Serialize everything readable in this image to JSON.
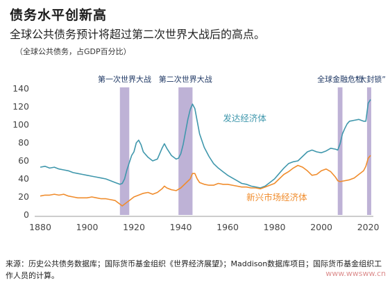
{
  "header": {
    "title": "债务水平创新高",
    "subtitle": "全球公共债务预计将超过第二次世界大战后的高点。",
    "unit_note": "（全球公共债务，占GDP百分比）"
  },
  "footer": {
    "source": "来源：历史公共债务数据库；国际货币基金组织《世界经济展望》；Maddison数据库项目；国际货币基金组织工作人员的计算。"
  },
  "watermark": {
    "text": "www.wwsww.cn"
  },
  "colors": {
    "advanced": "#3f97ac",
    "emerging": "#f08c2c",
    "band": "#b3a4cf",
    "axis": "#9a9a9a"
  },
  "chart_data": {
    "type": "line",
    "xlim": [
      1880,
      2021
    ],
    "ylim": [
      0,
      140
    ],
    "x_ticks": [
      1880,
      1900,
      1920,
      1940,
      1960,
      1980,
      2000,
      2020
    ],
    "y_ticks": [
      0,
      20,
      40,
      60,
      80,
      100,
      120,
      140
    ],
    "grid": false,
    "annotations": [
      {
        "label": "第一次世界大战",
        "start": 1914,
        "end": 1918
      },
      {
        "label": "第二次世界大战",
        "start": 1939,
        "end": 1945
      },
      {
        "label": "全球金融危机",
        "start": 2007,
        "end": 2009
      },
      {
        "label": "“大封锁”",
        "start": 2019.5,
        "end": 2021
      }
    ],
    "series": [
      {
        "name": "发达经济体",
        "points": [
          [
            1880,
            53
          ],
          [
            1882,
            54
          ],
          [
            1884,
            52
          ],
          [
            1886,
            53
          ],
          [
            1888,
            51
          ],
          [
            1890,
            50
          ],
          [
            1892,
            49
          ],
          [
            1894,
            47
          ],
          [
            1896,
            46
          ],
          [
            1898,
            45
          ],
          [
            1900,
            44
          ],
          [
            1902,
            43
          ],
          [
            1904,
            42
          ],
          [
            1906,
            41
          ],
          [
            1908,
            40
          ],
          [
            1910,
            38
          ],
          [
            1912,
            36
          ],
          [
            1914,
            34
          ],
          [
            1915,
            35
          ],
          [
            1916,
            40
          ],
          [
            1917,
            50
          ],
          [
            1918,
            58
          ],
          [
            1919,
            66
          ],
          [
            1920,
            70
          ],
          [
            1921,
            80
          ],
          [
            1922,
            83
          ],
          [
            1923,
            78
          ],
          [
            1924,
            70
          ],
          [
            1926,
            64
          ],
          [
            1928,
            60
          ],
          [
            1930,
            62
          ],
          [
            1932,
            74
          ],
          [
            1933,
            79
          ],
          [
            1934,
            74
          ],
          [
            1936,
            66
          ],
          [
            1938,
            62
          ],
          [
            1939,
            63
          ],
          [
            1940,
            68
          ],
          [
            1941,
            78
          ],
          [
            1942,
            92
          ],
          [
            1943,
            106
          ],
          [
            1944,
            117
          ],
          [
            1945,
            123
          ],
          [
            1946,
            118
          ],
          [
            1947,
            104
          ],
          [
            1948,
            90
          ],
          [
            1950,
            75
          ],
          [
            1952,
            65
          ],
          [
            1954,
            57
          ],
          [
            1956,
            52
          ],
          [
            1958,
            48
          ],
          [
            1960,
            44
          ],
          [
            1962,
            41
          ],
          [
            1964,
            38
          ],
          [
            1966,
            35
          ],
          [
            1968,
            34
          ],
          [
            1970,
            32
          ],
          [
            1972,
            31
          ],
          [
            1974,
            30
          ],
          [
            1976,
            32
          ],
          [
            1978,
            36
          ],
          [
            1980,
            40
          ],
          [
            1982,
            46
          ],
          [
            1984,
            52
          ],
          [
            1986,
            57
          ],
          [
            1988,
            59
          ],
          [
            1990,
            60
          ],
          [
            1992,
            65
          ],
          [
            1994,
            70
          ],
          [
            1996,
            72
          ],
          [
            1998,
            70
          ],
          [
            2000,
            69
          ],
          [
            2002,
            71
          ],
          [
            2004,
            74
          ],
          [
            2006,
            73
          ],
          [
            2007,
            72
          ],
          [
            2008,
            79
          ],
          [
            2009,
            90
          ],
          [
            2010,
            96
          ],
          [
            2011,
            101
          ],
          [
            2012,
            104
          ],
          [
            2014,
            105
          ],
          [
            2016,
            106
          ],
          [
            2018,
            104
          ],
          [
            2019,
            104
          ],
          [
            2020,
            124
          ],
          [
            2021,
            128
          ]
        ]
      },
      {
        "name": "新兴市场经济体",
        "points": [
          [
            1880,
            21
          ],
          [
            1882,
            22
          ],
          [
            1884,
            22
          ],
          [
            1886,
            23
          ],
          [
            1888,
            22
          ],
          [
            1890,
            23
          ],
          [
            1892,
            21
          ],
          [
            1894,
            20
          ],
          [
            1896,
            19
          ],
          [
            1898,
            19
          ],
          [
            1900,
            19
          ],
          [
            1902,
            20
          ],
          [
            1904,
            19
          ],
          [
            1906,
            18
          ],
          [
            1908,
            18
          ],
          [
            1910,
            17
          ],
          [
            1912,
            16
          ],
          [
            1914,
            12
          ],
          [
            1915,
            10
          ],
          [
            1916,
            12
          ],
          [
            1917,
            14
          ],
          [
            1918,
            16
          ],
          [
            1920,
            20
          ],
          [
            1922,
            22
          ],
          [
            1924,
            24
          ],
          [
            1926,
            25
          ],
          [
            1928,
            23
          ],
          [
            1930,
            25
          ],
          [
            1932,
            29
          ],
          [
            1933,
            32
          ],
          [
            1934,
            30
          ],
          [
            1936,
            28
          ],
          [
            1938,
            27
          ],
          [
            1940,
            30
          ],
          [
            1942,
            35
          ],
          [
            1944,
            40
          ],
          [
            1945,
            46
          ],
          [
            1946,
            46
          ],
          [
            1947,
            40
          ],
          [
            1948,
            36
          ],
          [
            1950,
            34
          ],
          [
            1952,
            33
          ],
          [
            1954,
            33
          ],
          [
            1956,
            35
          ],
          [
            1958,
            34
          ],
          [
            1960,
            34
          ],
          [
            1962,
            33
          ],
          [
            1964,
            32
          ],
          [
            1966,
            31
          ],
          [
            1968,
            31
          ],
          [
            1970,
            30
          ],
          [
            1972,
            30
          ],
          [
            1974,
            29
          ],
          [
            1976,
            31
          ],
          [
            1978,
            33
          ],
          [
            1980,
            35
          ],
          [
            1982,
            40
          ],
          [
            1984,
            45
          ],
          [
            1986,
            48
          ],
          [
            1988,
            52
          ],
          [
            1990,
            55
          ],
          [
            1992,
            53
          ],
          [
            1994,
            49
          ],
          [
            1996,
            44
          ],
          [
            1998,
            45
          ],
          [
            2000,
            49
          ],
          [
            2002,
            51
          ],
          [
            2004,
            48
          ],
          [
            2006,
            42
          ],
          [
            2007,
            38
          ],
          [
            2008,
            37
          ],
          [
            2010,
            38
          ],
          [
            2012,
            39
          ],
          [
            2014,
            41
          ],
          [
            2016,
            45
          ],
          [
            2018,
            49
          ],
          [
            2019,
            54
          ],
          [
            2020,
            63
          ],
          [
            2021,
            66
          ]
        ]
      }
    ]
  }
}
